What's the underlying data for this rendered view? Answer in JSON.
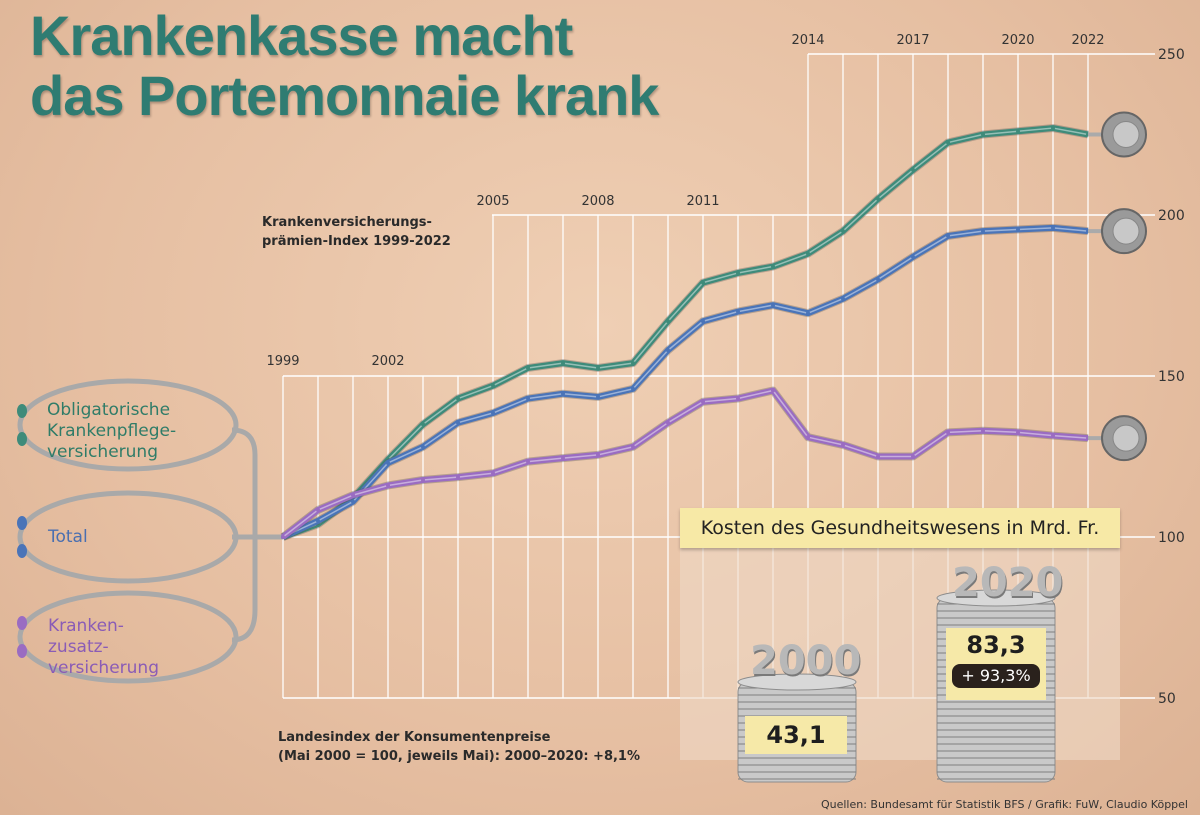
{
  "title_line1": "Krankenkasse macht",
  "title_line2": "das Portemonnaie krank",
  "chart_data": {
    "type": "line",
    "title": "Krankenversicherungsprämien-Index 1999-2022",
    "subtitle_line1": "Krankenversicherungs-",
    "subtitle_line2": "prämien-Index 1999-2022",
    "x": [
      1999,
      2000,
      2001,
      2002,
      2003,
      2004,
      2005,
      2006,
      2007,
      2008,
      2009,
      2010,
      2011,
      2012,
      2013,
      2014,
      2015,
      2016,
      2017,
      2018,
      2019,
      2020,
      2021,
      2022
    ],
    "x_tick_labels": [
      "1999",
      "2002",
      "2005",
      "2008",
      "2011",
      "2014",
      "2017",
      "2020",
      "2022"
    ],
    "y_tick_labels": [
      "250",
      "200",
      "150",
      "100",
      "50"
    ],
    "ylim": [
      50,
      250
    ],
    "series": [
      {
        "name": "Obligatorische Krankenpflege-versicherung",
        "legend_lines": [
          "Obligatorische",
          "Krankenpflege-",
          "versicherung"
        ],
        "color": "#3e8b7a",
        "values": [
          100,
          104,
          112,
          124,
          135,
          143,
          147,
          152.5,
          154,
          152.5,
          154,
          167,
          179,
          182,
          184,
          188,
          195,
          205,
          214,
          222.5,
          225,
          226,
          227,
          225
        ]
      },
      {
        "name": "Total",
        "legend_lines": [
          "Total"
        ],
        "color": "#4a74b8",
        "values": [
          100,
          105,
          111,
          123,
          128,
          135.5,
          138.5,
          143,
          144.5,
          143.5,
          146,
          158,
          167,
          170,
          172,
          169.5,
          174,
          180,
          187,
          193.5,
          195,
          195.5,
          196,
          195
        ]
      },
      {
        "name": "Kranken-zusatz-versicherung",
        "legend_lines": [
          "Kranken-",
          "zusatz-",
          "versicherung"
        ],
        "color": "#9a6cc2",
        "values": [
          100,
          108.4,
          113,
          116,
          117.7,
          118.6,
          119.8,
          123.4,
          124.5,
          125.5,
          128,
          135.5,
          142,
          143,
          145.5,
          131,
          128.6,
          125,
          125,
          132.5,
          133,
          132.5,
          131.5,
          130.7
        ]
      }
    ]
  },
  "cpi_note_line1": "Landesindex der Konsumentenpreise",
  "cpi_note_line2": "(Mai 2000 = 100, jeweils Mai): 2000–2020: +8,1%",
  "costs": {
    "title": "Kosten des Gesundheitswesens in Mrd. Fr.",
    "bars": [
      {
        "year": "2000",
        "value": "43,1"
      },
      {
        "year": "2020",
        "value": "83,3"
      }
    ],
    "change": "+ 93,3%"
  },
  "source": "Quellen: Bundesamt für Statistik BFS  / Grafik: FuW, Claudio Köppel"
}
